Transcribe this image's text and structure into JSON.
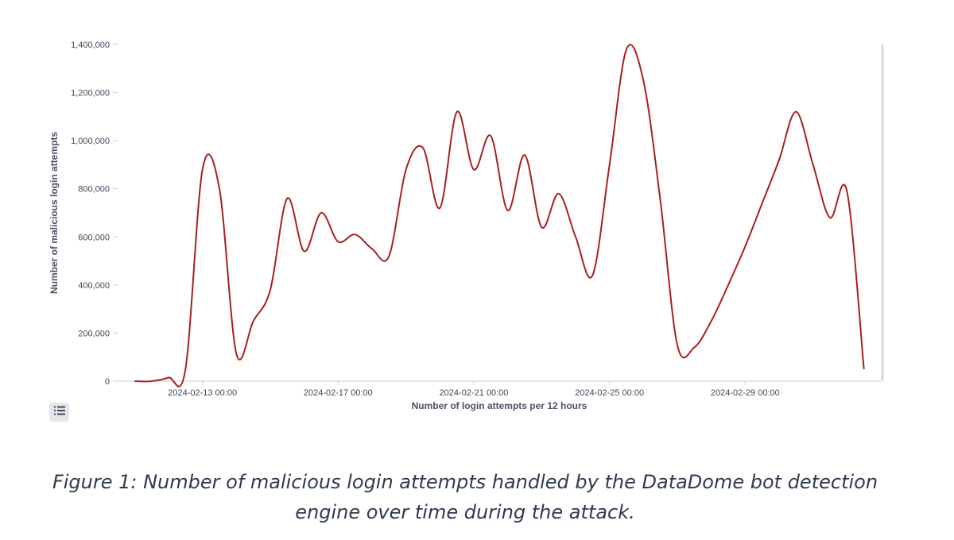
{
  "colors": {
    "series": "#a72020",
    "text": "#3f4758",
    "axis_title": "#4b5263",
    "axis_line": "#c9cdd4",
    "caption": "#2f3a4f"
  },
  "legend_toggle_icon": "list-icon",
  "caption": {
    "line1": "Figure 1: Number of malicious login attempts handled by the DataDome bot detection",
    "line2": "engine over time during the attack."
  },
  "chart_data": {
    "type": "line",
    "title": "",
    "xlabel": "Number of login attempts per 12 hours",
    "ylabel": "Number of malicious login attempts",
    "ylim": [
      0,
      1400000
    ],
    "grid": false,
    "legend": "none",
    "y_ticks": [
      {
        "value": 0,
        "label": "0"
      },
      {
        "value": 200000,
        "label": "200,000"
      },
      {
        "value": 400000,
        "label": "400,000"
      },
      {
        "value": 600000,
        "label": "600,000"
      },
      {
        "value": 800000,
        "label": "800,000"
      },
      {
        "value": 1000000,
        "label": "1,000,000"
      },
      {
        "value": 1200000,
        "label": "1,200,000"
      },
      {
        "value": 1400000,
        "label": "1,400,000"
      }
    ],
    "xlim": [
      "2024-02-10 12:00",
      "2024-03-04 00:00"
    ],
    "x_ticks": [
      {
        "x": "2024-02-13 00:00",
        "label": "2024-02-13 00:00"
      },
      {
        "x": "2024-02-17 00:00",
        "label": "2024-02-17 00:00"
      },
      {
        "x": "2024-02-21 00:00",
        "label": "2024-02-21 00:00"
      },
      {
        "x": "2024-02-25 00:00",
        "label": "2024-02-25 00:00"
      },
      {
        "x": "2024-02-29 00:00",
        "label": "2024-02-29 00:00"
      }
    ],
    "series": [
      {
        "name": "",
        "x": [
          "2024-02-11 00:00",
          "2024-02-11 12:00",
          "2024-02-12 00:00",
          "2024-02-12 12:00",
          "2024-02-13 00:00",
          "2024-02-13 12:00",
          "2024-02-14 00:00",
          "2024-02-14 12:00",
          "2024-02-15 00:00",
          "2024-02-15 12:00",
          "2024-02-16 00:00",
          "2024-02-16 12:00",
          "2024-02-17 00:00",
          "2024-02-17 12:00",
          "2024-02-18 00:00",
          "2024-02-18 12:00",
          "2024-02-19 00:00",
          "2024-02-19 12:00",
          "2024-02-20 00:00",
          "2024-02-20 12:00",
          "2024-02-21 00:00",
          "2024-02-21 12:00",
          "2024-02-22 00:00",
          "2024-02-22 12:00",
          "2024-02-23 00:00",
          "2024-02-23 12:00",
          "2024-02-24 00:00",
          "2024-02-24 12:00",
          "2024-02-25 00:00",
          "2024-02-25 12:00",
          "2024-02-26 00:00",
          "2024-02-26 12:00",
          "2024-02-27 00:00",
          "2024-02-27 12:00",
          "2024-02-28 00:00",
          "2024-02-28 12:00",
          "2024-02-29 00:00",
          "2024-02-29 12:00",
          "2024-03-01 00:00",
          "2024-03-01 12:00",
          "2024-03-02 00:00",
          "2024-03-02 12:00",
          "2024-03-03 00:00",
          "2024-03-03 12:00"
        ],
        "y": [
          0,
          0,
          15000,
          50000,
          880000,
          800000,
          115000,
          250000,
          380000,
          760000,
          540000,
          700000,
          580000,
          610000,
          550000,
          520000,
          880000,
          970000,
          720000,
          1120000,
          880000,
          1020000,
          710000,
          940000,
          640000,
          780000,
          600000,
          440000,
          900000,
          1380000,
          1250000,
          750000,
          150000,
          140000,
          250000,
          400000,
          560000,
          740000,
          920000,
          1120000,
          900000,
          680000,
          790000,
          50000
        ]
      }
    ]
  }
}
